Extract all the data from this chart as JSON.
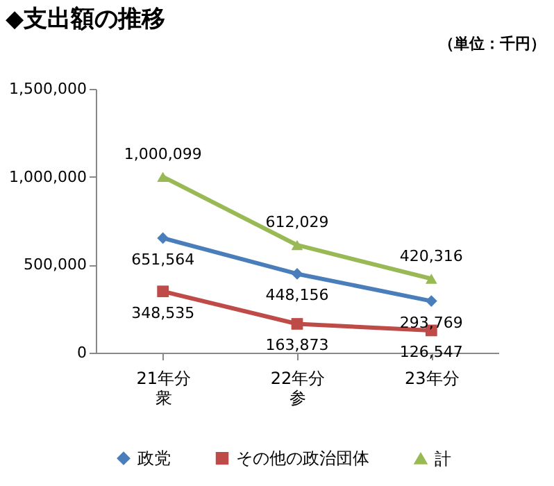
{
  "chart_data": {
    "type": "line",
    "title": "◆支出額の推移",
    "annotations": [
      "（単位：千円）"
    ],
    "categories": [
      "21年分衆",
      "22年分参",
      "23年分"
    ],
    "series": [
      {
        "name": "政党",
        "color": "#4a7ebb",
        "marker": "diamond",
        "values": [
          651564,
          448156,
          293769
        ],
        "value_labels": [
          "651,564",
          "448,156",
          "293,769"
        ]
      },
      {
        "name": "その他の政治団体",
        "color": "#be4b48",
        "marker": "square",
        "values": [
          348535,
          163873,
          126547
        ],
        "value_labels": [
          "348,535",
          "163,873",
          "126,547"
        ]
      },
      {
        "name": "計",
        "color": "#98b954",
        "marker": "triangle",
        "values": [
          1000099,
          612029,
          420316
        ],
        "value_labels": [
          "1,000,099",
          "612,029",
          "420,316"
        ]
      }
    ],
    "ylim": [
      0,
      1500000
    ],
    "yticks": [
      0,
      {
        "value": 500000,
        "label": "500,000"
      },
      {
        "value": 1000000,
        "label": "1,000,000"
      },
      {
        "value": 1500000,
        "label": "1,500,000"
      }
    ],
    "grid": false,
    "legend": "bottom"
  }
}
